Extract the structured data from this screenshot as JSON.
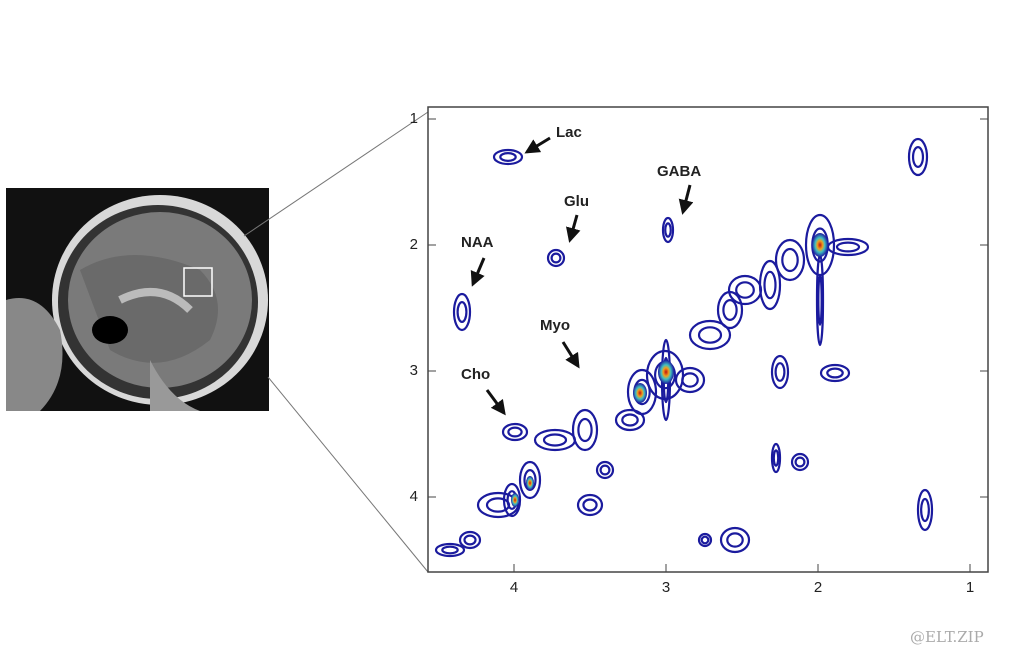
{
  "spectrum": {
    "x_ticks": [
      4,
      3,
      2,
      1
    ],
    "y_ticks": [
      1,
      2,
      3,
      4
    ],
    "peak_labels": [
      "Lac",
      "Glu",
      "GABA",
      "NAA",
      "Myo",
      "Cho"
    ]
  },
  "watermark": "@ELT.ZIP"
}
